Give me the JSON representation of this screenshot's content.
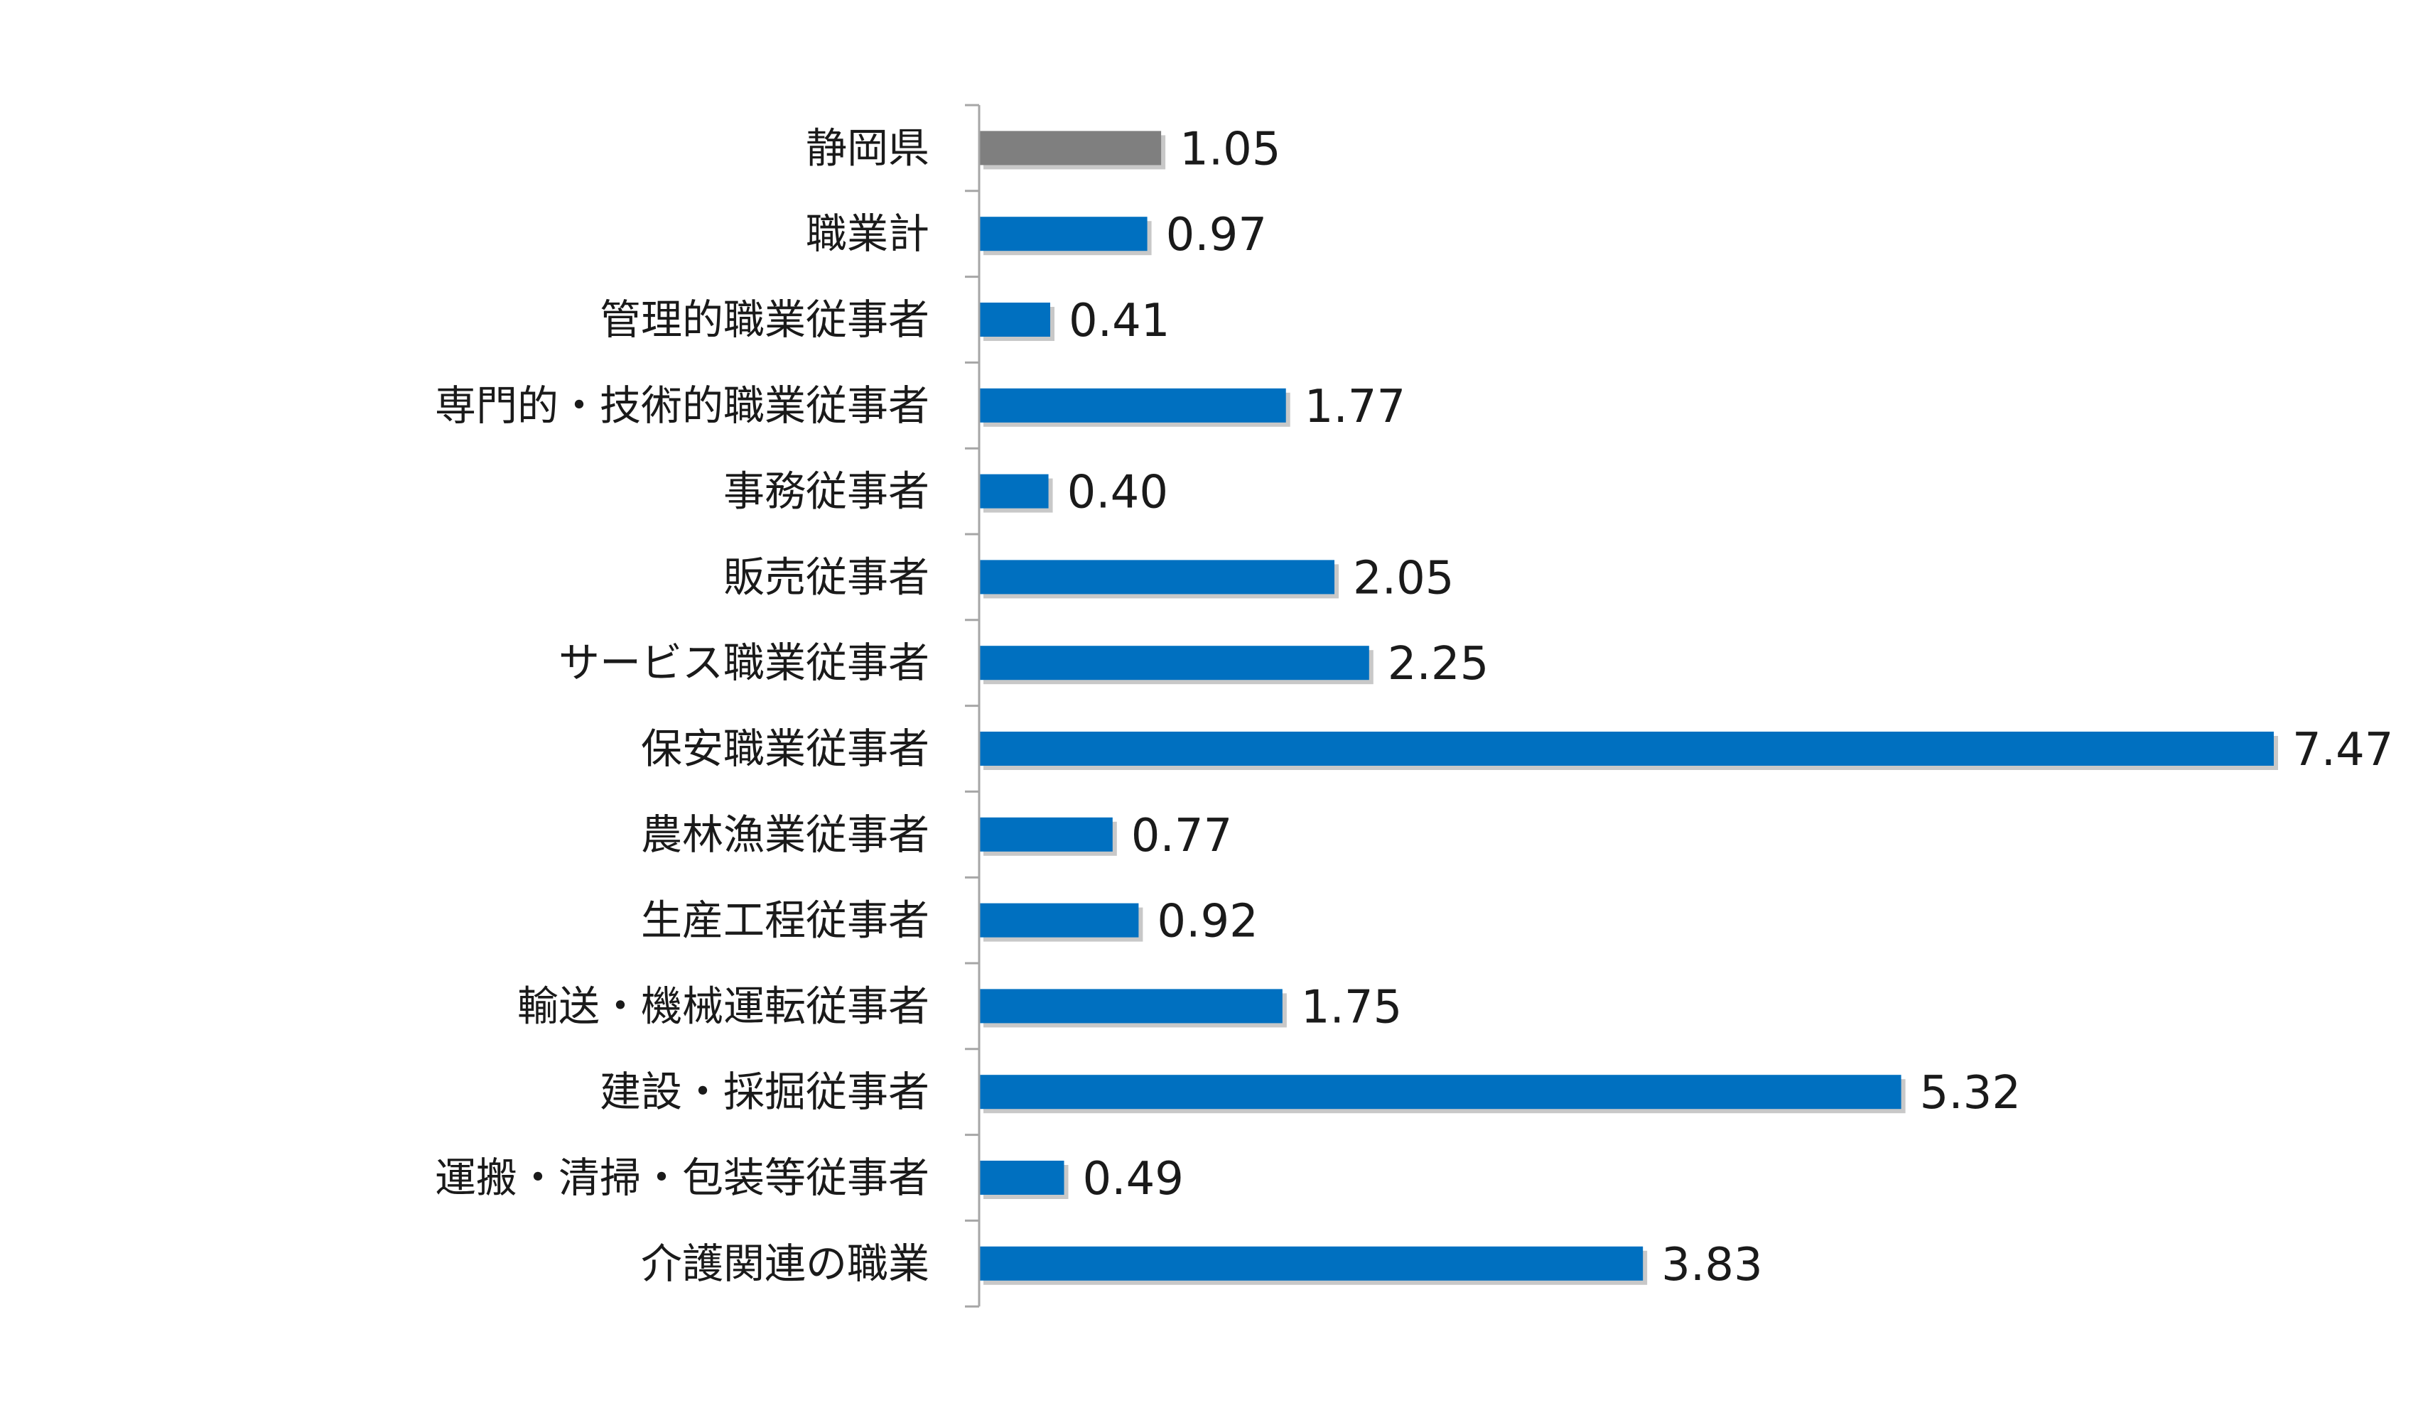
{
  "chart_data": {
    "type": "bar",
    "orientation": "horizontal",
    "title": "",
    "xlabel": "",
    "ylabel": "",
    "xlim": [
      0,
      7.47
    ],
    "grid": false,
    "legend": "none",
    "categories": [
      "静岡県",
      "職業計",
      "管理的職業従事者",
      "専門的・技術的職業従事者",
      "事務従事者",
      "販売従事者",
      "サービス職業従事者",
      "保安職業従事者",
      "農林漁業従事者",
      "生産工程従事者",
      "輸送・機械運転従事者",
      "建設・採掘従事者",
      "運搬・清掃・包装等従事者",
      "介護関連の職業"
    ],
    "values": [
      1.05,
      0.97,
      0.41,
      1.77,
      0.4,
      2.05,
      2.25,
      7.47,
      0.77,
      0.92,
      1.75,
      5.32,
      0.49,
      3.83
    ],
    "value_labels": [
      "1.05",
      "0.97",
      "0.41",
      "1.77",
      "0.40",
      "2.05",
      "2.25",
      "7.47",
      "0.77",
      "0.92",
      "1.75",
      "5.32",
      "0.49",
      "3.83"
    ],
    "highlight_index": 0,
    "colors": {
      "highlight": "#7f7f7f",
      "bar": "#0070c0",
      "shadow": "#c8c8c8",
      "axis": "#a6a6a6",
      "text": "#1a1a1a"
    }
  }
}
